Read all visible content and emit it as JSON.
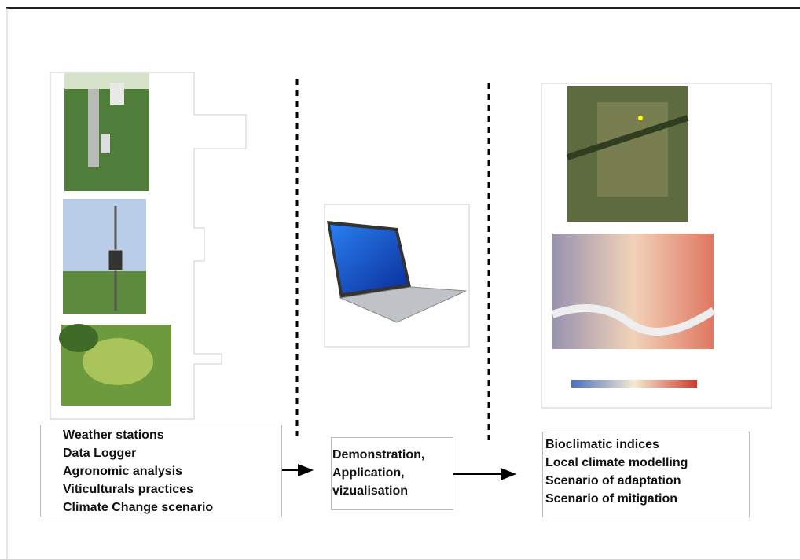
{
  "panels": [
    {
      "lines": [
        "Weather stations",
        "Data Logger",
        "Agronomic analysis",
        "Viticulturals practices",
        "Climate Change scenario"
      ]
    },
    {
      "lines": [
        "Demonstration,",
        "Application,",
        "vizualisation"
      ]
    },
    {
      "lines": [
        "Bioclimatic indices",
        "Local climate modelling",
        "Scenario of adaptation",
        "Scenario of mitigation"
      ]
    }
  ]
}
